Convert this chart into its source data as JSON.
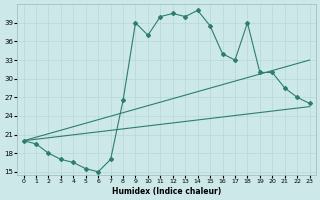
{
  "xlabel": "Humidex (Indice chaleur)",
  "bg_color": "#cce8e8",
  "line_color": "#2e7d6e",
  "grid_color": "#b8d8d8",
  "xlim": [
    -0.5,
    23.5
  ],
  "ylim": [
    14.5,
    42
  ],
  "yticks": [
    15,
    18,
    21,
    24,
    27,
    30,
    33,
    36,
    39
  ],
  "xticks": [
    0,
    1,
    2,
    3,
    4,
    5,
    6,
    7,
    8,
    9,
    10,
    11,
    12,
    13,
    14,
    15,
    16,
    17,
    18,
    19,
    20,
    21,
    22,
    23
  ],
  "line1_x": [
    0,
    1,
    2,
    3,
    4,
    5,
    6,
    7,
    8,
    9,
    10,
    11,
    12,
    13,
    14,
    15,
    16,
    17,
    18,
    19,
    20,
    21,
    22,
    23
  ],
  "line1_y": [
    20.0,
    19.5,
    18.0,
    17.0,
    16.5,
    15.5,
    15.0,
    17.0,
    26.5,
    39.0,
    37.0,
    40.0,
    40.5,
    40.0,
    41.0,
    38.5,
    34.0,
    33.0,
    39.0,
    31.0,
    31.0,
    28.5,
    27.0,
    26.0
  ],
  "line2_x": [
    0,
    23
  ],
  "line2_y": [
    20.0,
    33.0
  ],
  "line3_x": [
    0,
    23
  ],
  "line3_y": [
    20.0,
    25.5
  ]
}
